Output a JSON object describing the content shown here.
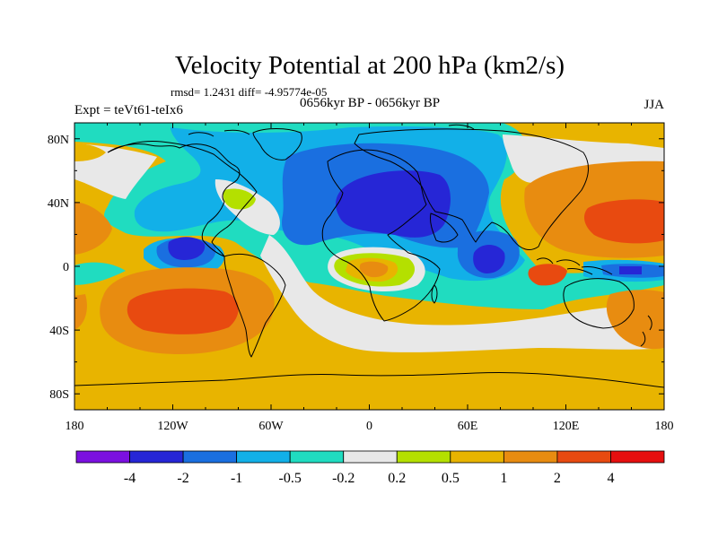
{
  "chart_data": {
    "type": "heatmap",
    "title": "Velocity Potential at 200 hPa (km2/s)",
    "stats_line": "rmsd= 1.2431  diff= -4.95774e-05",
    "subtitle": "0656kyr BP - 0656kyr BP",
    "left_label": "Expt = teVt61-teIx6",
    "right_label": "JJA",
    "x_axis": {
      "range": [
        -180,
        180
      ],
      "ticks": [
        -180,
        -120,
        -60,
        0,
        60,
        120,
        180
      ],
      "tick_labels": [
        "180",
        "120W",
        "60W",
        "0",
        "60E",
        "120E",
        "180"
      ]
    },
    "y_axis": {
      "range": [
        -90,
        90
      ],
      "ticks": [
        80,
        40,
        0,
        -40,
        -80
      ],
      "tick_labels": [
        "80N",
        "40N",
        "0",
        "40S",
        "80S"
      ]
    },
    "colorbar": {
      "levels": [
        "-4",
        "-2",
        "-1",
        "-0.5",
        "-0.2",
        "0.2",
        "0.5",
        "1",
        "2",
        "4"
      ],
      "colors": [
        "#7b10e0",
        "#2626d6",
        "#1a6fe0",
        "#12b0e8",
        "#20dcc0",
        "#e8e8e8",
        "#b4e000",
        "#e8b400",
        "#e88c10",
        "#e84a10",
        "#e60f0f"
      ]
    },
    "features": [
      {
        "name": "neg-center-north-africa-europe",
        "lon": 25,
        "lat": 38,
        "value": -3.0
      },
      {
        "name": "neg-center-east-pacific",
        "lon": -112,
        "lat": 12,
        "value": -2.5
      },
      {
        "name": "neg-center-indian-ocean",
        "lon": 75,
        "lat": 4,
        "value": -2.2
      },
      {
        "name": "neg-center-west-pacific-eq",
        "lon": 158,
        "lat": -2,
        "value": -2.2
      },
      {
        "name": "pos-center-southeast-pacific",
        "lon": -128,
        "lat": -28,
        "value": 3.0
      },
      {
        "name": "pos-center-northwest-pacific",
        "lon": 158,
        "lat": 28,
        "value": 3.0
      },
      {
        "name": "pos-center-central-africa",
        "lon": 15,
        "lat": -4,
        "value": 1.5
      },
      {
        "name": "pos-center-southern-ocean",
        "lon": 40,
        "lat": -70,
        "value": 1.5
      }
    ]
  }
}
